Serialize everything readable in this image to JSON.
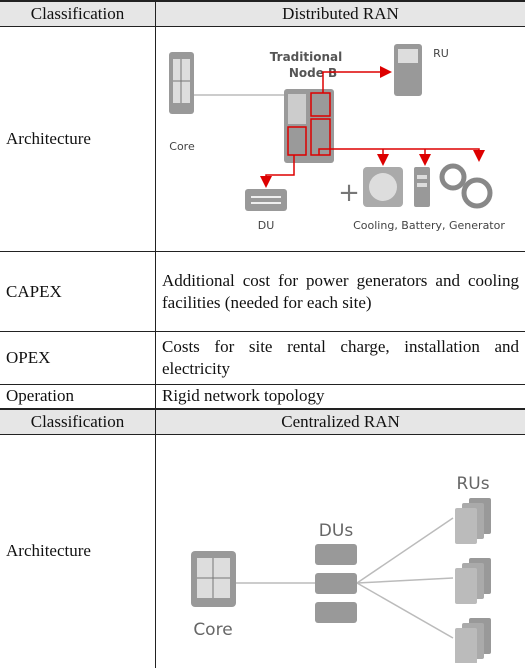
{
  "distributed": {
    "header": {
      "classification": "Classification",
      "title": "Distributed RAN"
    },
    "architecture": {
      "label": "Architecture",
      "diagram": {
        "node_b": [
          "Traditional",
          "Node B"
        ],
        "ru": "RU",
        "core": "Core",
        "du": "DU",
        "extras": "Cooling, Battery, Generator"
      }
    },
    "rows": [
      [
        "CAPEX",
        "Additional cost for power generators and cooling facilities (needed for each site)"
      ],
      [
        "OPEX",
        "Costs for site rental charge, installation and electricity"
      ],
      [
        "Operation",
        "Rigid network topology"
      ]
    ]
  },
  "centralized": {
    "header": {
      "classification": "Classification",
      "title": "Centralized RAN"
    },
    "architecture": {
      "label": "Architecture",
      "diagram": {
        "dus": "DUs",
        "rus": "RUs",
        "core": "Core"
      }
    }
  }
}
